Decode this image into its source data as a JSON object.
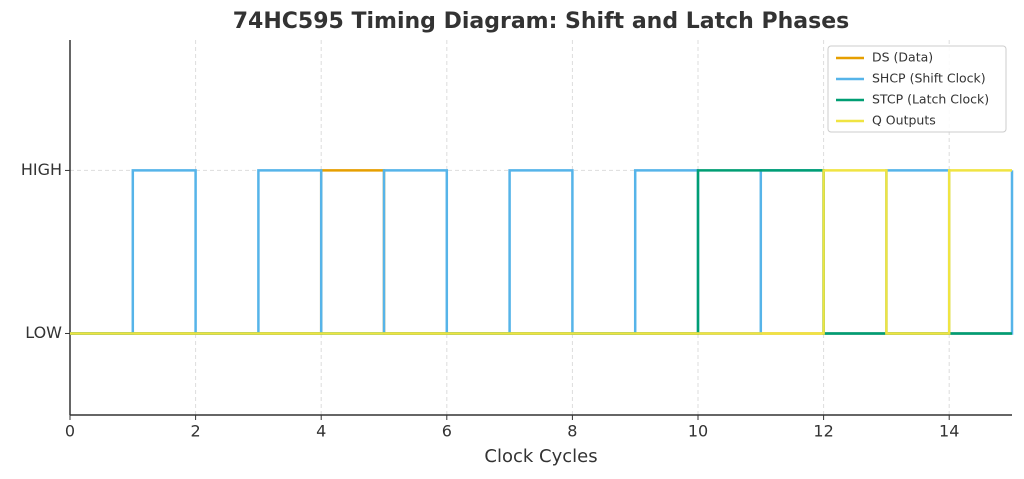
{
  "chart_data": {
    "type": "step",
    "title": "74HC595 Timing Diagram: Shift and Latch Phases",
    "xlabel": "Clock Cycles",
    "x": [
      0,
      1,
      2,
      3,
      4,
      5,
      6,
      7,
      8,
      9,
      10,
      11,
      12,
      13,
      14,
      15
    ],
    "series": [
      {
        "name": "DS (Data)",
        "color": "#e69f00",
        "values": [
          0,
          0,
          0,
          0,
          1,
          0,
          0,
          0,
          0,
          0,
          0,
          0,
          0,
          0,
          0,
          0
        ]
      },
      {
        "name": "SHCP (Shift Clock)",
        "color": "#56b4e9",
        "values": [
          0,
          1,
          0,
          1,
          0,
          1,
          0,
          1,
          0,
          1,
          0,
          1,
          0,
          1,
          0,
          1
        ]
      },
      {
        "name": "STCP (Latch Clock)",
        "color": "#009e73",
        "values": [
          0,
          0,
          0,
          0,
          0,
          0,
          0,
          0,
          0,
          0,
          1,
          1,
          0,
          0,
          0,
          0
        ]
      },
      {
        "name": "Q Outputs",
        "color": "#f0e442",
        "values": [
          0,
          0,
          0,
          0,
          0,
          0,
          0,
          0,
          0,
          0,
          0,
          0,
          1,
          0,
          1,
          1
        ]
      }
    ],
    "xlim": [
      0,
      15
    ],
    "xticks": [
      0,
      2,
      4,
      6,
      8,
      10,
      12,
      14
    ],
    "ylim": [
      -0.5,
      1.8
    ],
    "yticks": [
      {
        "value": 0,
        "label": "LOW"
      },
      {
        "value": 1,
        "label": "HIGH"
      }
    ],
    "grid": true,
    "legend": "upper right"
  }
}
